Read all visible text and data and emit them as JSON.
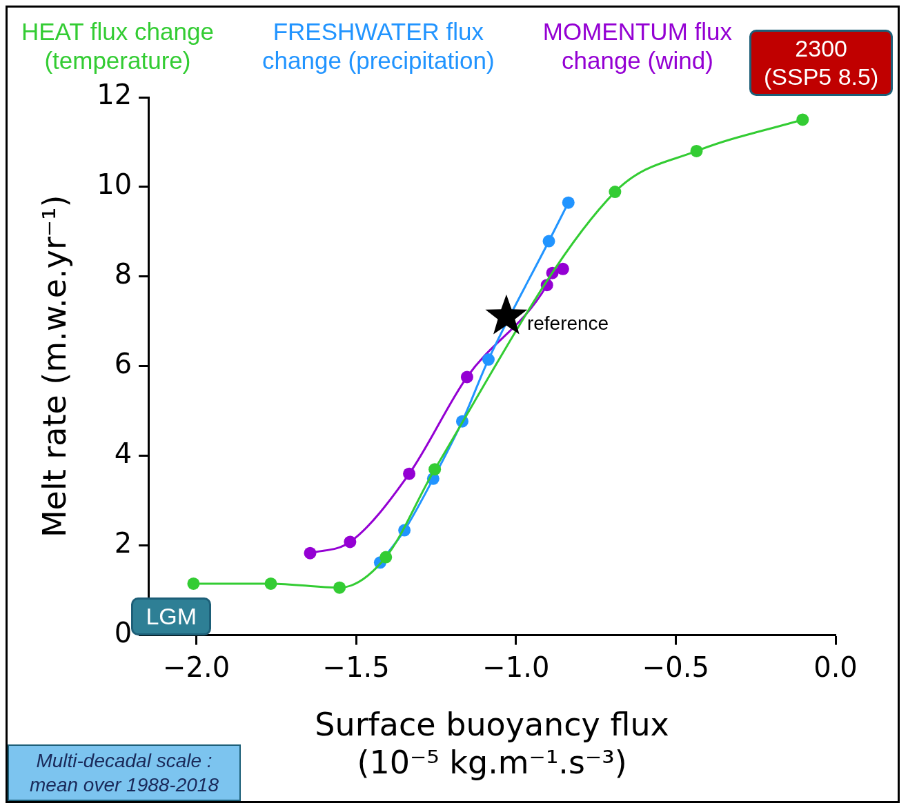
{
  "chart_data": {
    "type": "line",
    "xlabel": "Surface buoyancy flux\n(10⁻⁵ kg.m⁻¹.s⁻³)",
    "ylabel": "Melt rate (m.w.e.yr⁻¹)",
    "xlim": [
      -2.15,
      0
    ],
    "xticks": [
      {
        "value": -2,
        "label": "−2.0"
      },
      {
        "value": -1.5,
        "label": "−1.5"
      },
      {
        "value": -1,
        "label": "−1.0"
      },
      {
        "value": -0.5,
        "label": "−0.5"
      },
      {
        "value": 0,
        "label": "0.0"
      }
    ],
    "ylim": [
      0,
      12
    ],
    "yticks": [
      0,
      2,
      4,
      6,
      8,
      10,
      12
    ],
    "grid": false,
    "marker": "circle",
    "line_style": "solid",
    "legend": "top",
    "series": [
      {
        "name": "HEAT flux change\n(temperature)",
        "color": "#33cc33",
        "x": [
          -2.009,
          -1.767,
          -1.552,
          -1.407,
          -1.254,
          -0.69,
          -0.435,
          -0.103
        ],
        "values": [
          1.15,
          1.15,
          1.06,
          1.74,
          3.7,
          9.89,
          10.8,
          11.5
        ]
      },
      {
        "name": "FRESHWATER flux\nchange (precipitation)",
        "color": "#2194ff",
        "x": [
          -1.425,
          -1.349,
          -1.259,
          -1.168,
          -1.086,
          -0.897,
          -0.836
        ],
        "values": [
          1.62,
          2.34,
          3.49,
          4.77,
          6.15,
          8.79,
          9.65
        ]
      },
      {
        "name": "MOMENTUM flux\nchange (wind)",
        "color": "#9400d3",
        "x": [
          -1.644,
          -1.519,
          -1.334,
          -1.153,
          -0.903,
          -0.886,
          -0.853
        ],
        "values": [
          1.83,
          2.08,
          3.6,
          5.76,
          7.81,
          8.08,
          8.17
        ]
      },
      {
        "name": "reference",
        "type": "scatter",
        "marker": "star",
        "color": "#000000",
        "x": [
          -1.03
        ],
        "values": [
          7.11
        ]
      }
    ],
    "annotations": [
      {
        "text": "LGM",
        "x": -2.009,
        "y": 1.15
      },
      {
        "text": "2300\n(SSP5 8.5)",
        "x": -0.103,
        "y": 11.5
      },
      "Multi-decadal scale :\nmean over 1988-2018"
    ]
  }
}
